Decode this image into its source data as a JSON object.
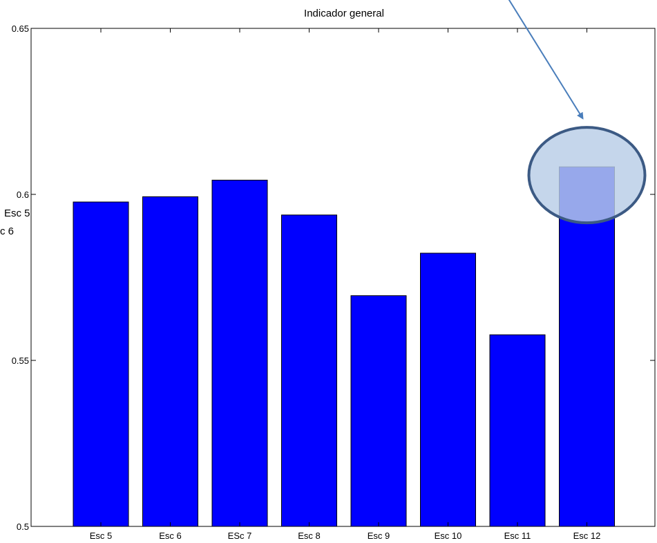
{
  "chart_data": {
    "type": "bar",
    "title": "Indicador general",
    "categories": [
      "Esc 5",
      "Esc 6",
      "ESc 7",
      "Esc 8",
      "Esc 9",
      "Esc 10",
      "Esc 11",
      "Esc 12"
    ],
    "values": [
      0.5977,
      0.5993,
      0.6043,
      0.5938,
      0.5695,
      0.5823,
      0.5577,
      0.6083
    ],
    "ylim": [
      0.5,
      0.65
    ],
    "yticks": [
      "0.5",
      "0.55",
      "0.6",
      "0.65"
    ],
    "ytick_values": [
      0.5,
      0.55,
      0.6,
      0.65
    ],
    "xlabel": "",
    "ylabel": "",
    "grid": false,
    "bar_color": "#0000ff",
    "highlight": {
      "category": "Esc 12",
      "fill": "#b8cde6",
      "stroke": "#3c5a84",
      "arrow_color": "#4a7ebb"
    }
  },
  "left_fragments": [
    "Esc 5",
    "c 6"
  ]
}
